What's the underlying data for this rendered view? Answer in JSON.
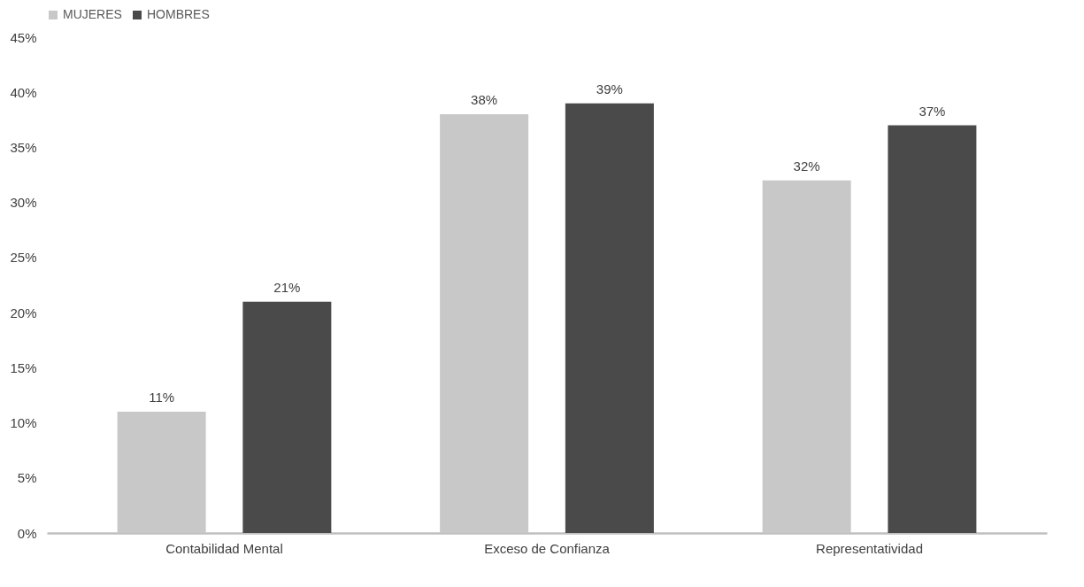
{
  "chart_data": {
    "type": "bar",
    "categories": [
      "Contabilidad Mental",
      "Exceso de Confianza",
      "Representatividad"
    ],
    "series": [
      {
        "name": "MUJERES",
        "color": "#c8c8c8",
        "values": [
          11,
          38,
          32
        ],
        "value_labels": [
          "11%",
          "38%",
          "32%"
        ]
      },
      {
        "name": "HOMBRES",
        "color": "#4a4a4a",
        "values": [
          21,
          39,
          37
        ],
        "value_labels": [
          "21%",
          "39%",
          "37%"
        ]
      }
    ],
    "ylim": [
      0,
      45
    ],
    "yticks": [
      {
        "value": 0,
        "label": "0%"
      },
      {
        "value": 5,
        "label": "5%"
      },
      {
        "value": 10,
        "label": "10%"
      },
      {
        "value": 15,
        "label": "15%"
      },
      {
        "value": 20,
        "label": "20%"
      },
      {
        "value": 25,
        "label": "25%"
      },
      {
        "value": 30,
        "label": "30%"
      },
      {
        "value": 35,
        "label": "35%"
      },
      {
        "value": 40,
        "label": "40%"
      },
      {
        "value": 45,
        "label": "45%"
      }
    ],
    "grid": false,
    "legend": "top"
  }
}
